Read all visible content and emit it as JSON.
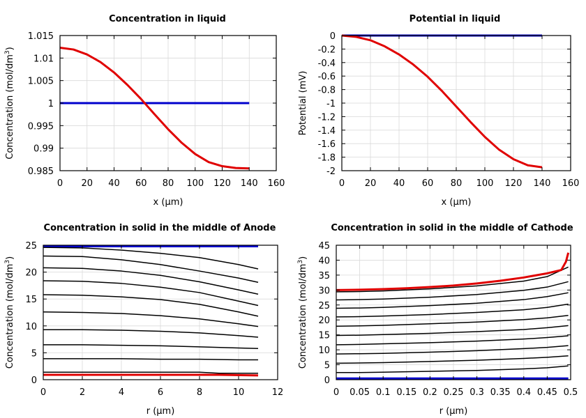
{
  "chart_data": [
    {
      "type": "line",
      "title": "Concentration in liquid",
      "xlabel": "x (µm)",
      "ylabel": "Concentration (mol/dm³)",
      "xlim": [
        0,
        160
      ],
      "ylim": [
        0.985,
        1.015
      ],
      "xticks": [
        0,
        20,
        40,
        60,
        80,
        100,
        120,
        140,
        160
      ],
      "xtick_labels": [
        "0",
        "20",
        "40",
        "60",
        "80",
        "100",
        "120",
        "140",
        "160"
      ],
      "yticks": [
        0.985,
        0.99,
        0.995,
        1,
        1.005,
        1.01,
        1.015
      ],
      "ytick_labels": [
        "0.985",
        "0.99",
        "0.995",
        "1",
        "1.005",
        "1.01",
        "1.015"
      ],
      "grid": true,
      "series": [
        {
          "color": "#0000cc",
          "width": 3,
          "x": [
            0,
            140
          ],
          "y": [
            1.0,
            1.0
          ]
        },
        {
          "color": "#e00000",
          "width": 3,
          "x": [
            0,
            10,
            20,
            30,
            40,
            50,
            60,
            70,
            80,
            90,
            100,
            110,
            120,
            130,
            140
          ],
          "y": [
            1.0123,
            1.0119,
            1.0108,
            1.0091,
            1.0068,
            1.004,
            1.0009,
            0.9975,
            0.9942,
            0.9912,
            0.9887,
            0.9869,
            0.986,
            0.9856,
            0.9855
          ]
        }
      ]
    },
    {
      "type": "line",
      "title": "Potential in liquid",
      "xlabel": "x (µm)",
      "ylabel": "Potential (mV)",
      "xlim": [
        0,
        160
      ],
      "ylim": [
        -2,
        0
      ],
      "xticks": [
        0,
        20,
        40,
        60,
        80,
        100,
        120,
        140,
        160
      ],
      "xtick_labels": [
        "0",
        "20",
        "40",
        "60",
        "80",
        "100",
        "120",
        "140",
        "160"
      ],
      "yticks": [
        0,
        -0.2,
        -0.4,
        -0.6,
        -0.8,
        -1,
        -1.2,
        -1.4,
        -1.6,
        -1.8,
        -2
      ],
      "ytick_labels": [
        "0",
        "-0.2",
        "-0.4",
        "-0.6",
        "-0.8",
        "-1",
        "-1.2",
        "-1.4",
        "-1.6",
        "-1.8",
        "-2"
      ],
      "grid": true,
      "series": [
        {
          "color": "#0000cc",
          "width": 3,
          "x": [
            0,
            140
          ],
          "y": [
            0,
            0
          ]
        },
        {
          "color": "#e00000",
          "width": 3,
          "x": [
            0,
            10,
            20,
            30,
            40,
            50,
            60,
            70,
            80,
            90,
            100,
            110,
            120,
            130,
            140
          ],
          "y": [
            0,
            -0.02,
            -0.07,
            -0.16,
            -0.28,
            -0.43,
            -0.61,
            -0.82,
            -1.05,
            -1.28,
            -1.5,
            -1.69,
            -1.83,
            -1.92,
            -1.95
          ]
        }
      ]
    },
    {
      "type": "line",
      "title": "Concentration in solid in the middle of Anode",
      "xlabel": "r (µm)",
      "ylabel": "Concentration (mol/dm³)",
      "xlim": [
        0,
        12
      ],
      "ylim": [
        0,
        25
      ],
      "xticks": [
        0,
        2,
        4,
        6,
        8,
        10,
        12
      ],
      "xtick_labels": [
        "0",
        "2",
        "4",
        "6",
        "8",
        "10",
        "12"
      ],
      "yticks": [
        0,
        5,
        10,
        15,
        20,
        25
      ],
      "ytick_labels": [
        "0",
        "5",
        "10",
        "15",
        "20",
        "25"
      ],
      "grid": true,
      "series": [
        {
          "color": "#0000cc",
          "width": 3,
          "x": [
            0,
            11
          ],
          "y": [
            24.8,
            24.8
          ]
        },
        {
          "color": "#000000",
          "width": 1.5,
          "x": [
            0,
            2,
            4,
            6,
            8,
            10,
            11
          ],
          "y": [
            24.6,
            24.5,
            24.1,
            23.5,
            22.7,
            21.4,
            20.6
          ]
        },
        {
          "color": "#000000",
          "width": 1.5,
          "x": [
            0,
            2,
            4,
            6,
            8,
            10,
            11
          ],
          "y": [
            23.0,
            22.9,
            22.3,
            21.4,
            20.2,
            18.9,
            18.1
          ]
        },
        {
          "color": "#000000",
          "width": 1.5,
          "x": [
            0,
            2,
            4,
            6,
            8,
            10,
            11
          ],
          "y": [
            20.8,
            20.7,
            20.2,
            19.4,
            18.2,
            16.7,
            15.9
          ]
        },
        {
          "color": "#000000",
          "width": 1.5,
          "x": [
            0,
            2,
            4,
            6,
            8,
            10,
            11
          ],
          "y": [
            18.4,
            18.3,
            17.9,
            17.2,
            16.2,
            14.6,
            13.8
          ]
        },
        {
          "color": "#000000",
          "width": 1.5,
          "x": [
            0,
            2,
            4,
            6,
            8,
            10,
            11
          ],
          "y": [
            15.8,
            15.7,
            15.4,
            14.9,
            14.0,
            12.6,
            11.8
          ]
        },
        {
          "color": "#000000",
          "width": 1.5,
          "x": [
            0,
            2,
            4,
            6,
            8,
            10,
            11
          ],
          "y": [
            12.6,
            12.5,
            12.3,
            11.9,
            11.3,
            10.4,
            9.9
          ]
        },
        {
          "color": "#000000",
          "width": 1.5,
          "x": [
            0,
            2,
            4,
            6,
            8,
            10,
            11
          ],
          "y": [
            9.3,
            9.3,
            9.2,
            9.0,
            8.7,
            8.2,
            7.9
          ]
        },
        {
          "color": "#000000",
          "width": 1.5,
          "x": [
            0,
            2,
            4,
            6,
            8,
            10,
            11
          ],
          "y": [
            6.5,
            6.5,
            6.4,
            6.3,
            6.1,
            5.9,
            5.8
          ]
        },
        {
          "color": "#000000",
          "width": 1.5,
          "x": [
            0,
            2,
            4,
            6,
            8,
            10,
            11
          ],
          "y": [
            3.9,
            3.9,
            3.9,
            3.8,
            3.8,
            3.7,
            3.7
          ]
        },
        {
          "color": "#000000",
          "width": 1.5,
          "x": [
            0,
            2,
            4,
            6,
            8,
            9,
            10,
            11
          ],
          "y": [
            1.4,
            1.4,
            1.4,
            1.4,
            1.4,
            1.2,
            1.2,
            1.2
          ]
        },
        {
          "color": "#e00000",
          "width": 3,
          "x": [
            0,
            9,
            11
          ],
          "y": [
            0.9,
            0.9,
            0.8
          ]
        }
      ]
    },
    {
      "type": "line",
      "title": "Concentration in solid in the middle of Cathode",
      "xlabel": "r (µm)",
      "ylabel": "Concentration (mol/dm³)",
      "xlim": [
        0,
        0.5
      ],
      "ylim": [
        0,
        45
      ],
      "xticks": [
        0,
        0.05,
        0.1,
        0.15,
        0.2,
        0.25,
        0.3,
        0.35,
        0.4,
        0.45,
        0.5
      ],
      "xtick_labels": [
        "0",
        "0.05",
        "0.1",
        "0.15",
        "0.2",
        "0.25",
        "0.3",
        "0.35",
        "0.4",
        "0.45",
        "0.5"
      ],
      "yticks": [
        0,
        5,
        10,
        15,
        20,
        25,
        30,
        35,
        40,
        45
      ],
      "ytick_labels": [
        "0",
        "5",
        "10",
        "15",
        "20",
        "25",
        "30",
        "35",
        "40",
        "45"
      ],
      "grid": true,
      "series": [
        {
          "color": "#0000cc",
          "width": 3,
          "x": [
            0,
            0.495
          ],
          "y": [
            0.4,
            0.4
          ]
        },
        {
          "color": "#000000",
          "width": 1.5,
          "x": [
            0,
            0.05,
            0.1,
            0.2,
            0.3,
            0.4,
            0.45,
            0.495
          ],
          "y": [
            2.4,
            2.4,
            2.5,
            2.8,
            3.1,
            3.6,
            4.0,
            4.6
          ]
        },
        {
          "color": "#000000",
          "width": 1.5,
          "x": [
            0,
            0.05,
            0.1,
            0.2,
            0.3,
            0.4,
            0.45,
            0.495
          ],
          "y": [
            5.5,
            5.6,
            5.7,
            6.1,
            6.5,
            7.1,
            7.5,
            8.0
          ]
        },
        {
          "color": "#000000",
          "width": 1.5,
          "x": [
            0,
            0.05,
            0.1,
            0.2,
            0.3,
            0.4,
            0.45,
            0.495
          ],
          "y": [
            8.6,
            8.7,
            8.8,
            9.2,
            9.7,
            10.4,
            10.8,
            11.4
          ]
        },
        {
          "color": "#000000",
          "width": 1.5,
          "x": [
            0,
            0.05,
            0.1,
            0.2,
            0.3,
            0.4,
            0.45,
            0.495
          ],
          "y": [
            11.7,
            11.8,
            12.0,
            12.4,
            12.9,
            13.6,
            14.1,
            14.7
          ]
        },
        {
          "color": "#000000",
          "width": 1.5,
          "x": [
            0,
            0.05,
            0.1,
            0.2,
            0.3,
            0.4,
            0.45,
            0.495
          ],
          "y": [
            14.8,
            14.9,
            15.1,
            15.5,
            16.1,
            16.8,
            17.4,
            18.1
          ]
        },
        {
          "color": "#000000",
          "width": 1.5,
          "x": [
            0,
            0.05,
            0.1,
            0.2,
            0.3,
            0.4,
            0.45,
            0.495
          ],
          "y": [
            17.9,
            18.0,
            18.2,
            18.7,
            19.3,
            20.1,
            20.7,
            21.5
          ]
        },
        {
          "color": "#000000",
          "width": 1.5,
          "x": [
            0,
            0.05,
            0.1,
            0.2,
            0.3,
            0.4,
            0.45,
            0.495
          ],
          "y": [
            21.0,
            21.1,
            21.3,
            21.8,
            22.5,
            23.4,
            24.2,
            25.3
          ]
        },
        {
          "color": "#000000",
          "width": 1.5,
          "x": [
            0,
            0.05,
            0.1,
            0.2,
            0.3,
            0.4,
            0.45,
            0.495
          ],
          "y": [
            23.9,
            24.0,
            24.2,
            24.8,
            25.6,
            26.8,
            27.8,
            29.1
          ]
        },
        {
          "color": "#000000",
          "width": 1.5,
          "x": [
            0,
            0.05,
            0.1,
            0.2,
            0.3,
            0.4,
            0.45,
            0.495
          ],
          "y": [
            26.7,
            26.8,
            27.0,
            27.6,
            28.5,
            29.9,
            31.0,
            32.8
          ]
        },
        {
          "color": "#000000",
          "width": 1.5,
          "x": [
            0,
            0.05,
            0.1,
            0.2,
            0.3,
            0.4,
            0.45,
            0.495
          ],
          "y": [
            29.4,
            29.5,
            29.7,
            30.4,
            31.4,
            33.0,
            34.5,
            37.7
          ]
        },
        {
          "color": "#e00000",
          "width": 3,
          "x": [
            0,
            0.05,
            0.1,
            0.15,
            0.2,
            0.25,
            0.3,
            0.35,
            0.4,
            0.45,
            0.48,
            0.49,
            0.495
          ],
          "y": [
            30.0,
            30.1,
            30.3,
            30.6,
            31.0,
            31.5,
            32.2,
            33.1,
            34.2,
            35.6,
            36.7,
            39.5,
            42.5
          ]
        }
      ]
    }
  ]
}
